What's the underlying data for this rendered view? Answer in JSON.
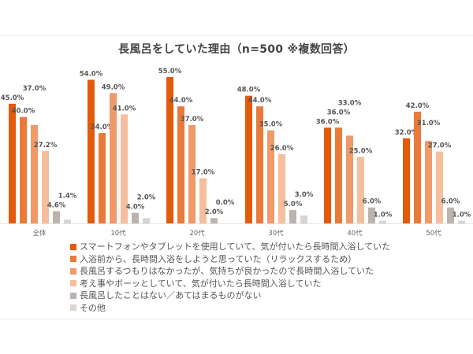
{
  "chart_data": {
    "type": "bar",
    "title": "長風呂をしていた理由（n=500 ※複数回答）",
    "categories": [
      "全体",
      "10代",
      "20代",
      "30代",
      "40代",
      "50代"
    ],
    "ylim": [
      0,
      60
    ],
    "grid": false,
    "legend_position": "bottom",
    "value_format": "%",
    "series": [
      {
        "name": "スマートフォンやタブレットを使用していて、気が付いたら長時間入浴していた",
        "color": "#E35A0A",
        "values": [
          45.0,
          54.0,
          55.0,
          48.0,
          36.0,
          32.0
        ],
        "labels": [
          "45.0%",
          "54.0%",
          "55.0%",
          "48.0%",
          "36.0%",
          "32.0%"
        ]
      },
      {
        "name": "入浴前から、長時間入浴をしようと思っていた（リラックスするため）",
        "color": "#EA7A3A",
        "values": [
          40.0,
          34.0,
          44.0,
          44.0,
          36.0,
          42.0
        ],
        "labels": [
          "40.0%",
          "34.0%",
          "44.0%",
          "44.0%",
          "36.0%",
          "42.0%"
        ]
      },
      {
        "name": "長風呂するつもりはなかったが、気持ちが良かったので長時間入浴していた",
        "color": "#EF9A68",
        "values": [
          37.0,
          49.0,
          37.0,
          35.0,
          33.0,
          31.0
        ],
        "labels": [
          "37.0%",
          "49.0%",
          "37.0%",
          "35.0%",
          "33.0%",
          "31.0%"
        ]
      },
      {
        "name": "考え事やボーッとしていて、気が付いたら長時間入浴していた",
        "color": "#F5BE9C",
        "values": [
          27.2,
          41.0,
          17.0,
          26.0,
          25.0,
          27.0
        ],
        "labels": [
          "27.2%",
          "41.0%",
          "17.0%",
          "26.0%",
          "25.0%",
          "27.0%"
        ]
      },
      {
        "name": "長風呂したことはない／あてはまるものがない",
        "color": "#BDB3AE",
        "values": [
          4.6,
          4.0,
          2.0,
          5.0,
          6.0,
          6.0
        ],
        "labels": [
          "4.6%",
          "4.0%",
          "2.0%",
          "5.0%",
          "6.0%",
          "6.0%"
        ]
      },
      {
        "name": "その他",
        "color": "#D9D4D0",
        "values": [
          1.4,
          2.0,
          0.0,
          3.0,
          1.0,
          1.0
        ],
        "labels": [
          "1.4%",
          "2.0%",
          "0.0%",
          "3.0%",
          "1.0%",
          "1.0%"
        ]
      }
    ]
  }
}
